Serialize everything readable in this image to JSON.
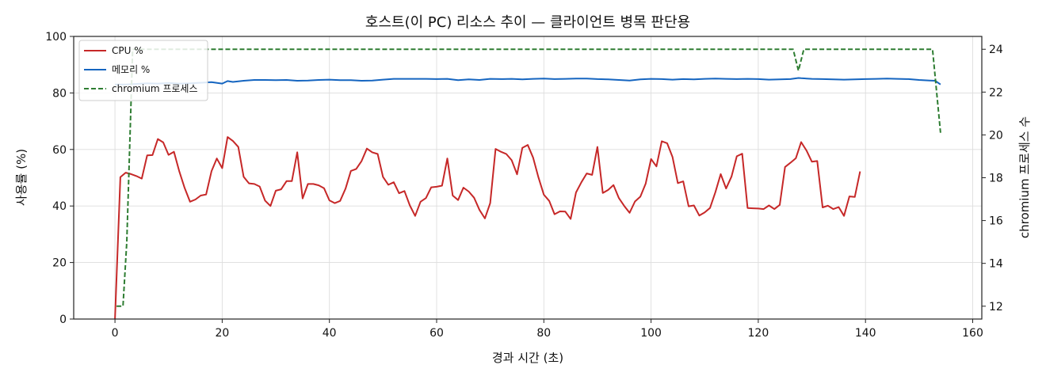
{
  "chart_data": {
    "type": "line",
    "title": "호스트(이 PC) 리소스 추이 — 클라이언트 병목 판단용",
    "xlabel": "경과 시간 (초)",
    "ylabel": "사용률 (%)",
    "ylabel_right": "chromium 프로세스 수",
    "xlim": [
      -7.7,
      161.7
    ],
    "ylim": [
      0,
      100
    ],
    "ylim_right": [
      11.4,
      24.6
    ],
    "x_ticks": [
      0,
      20,
      40,
      60,
      80,
      100,
      120,
      140,
      160
    ],
    "y_ticks": [
      0,
      20,
      40,
      60,
      80,
      100
    ],
    "y_ticks_right": [
      12,
      14,
      16,
      18,
      20,
      22,
      24
    ],
    "grid": true,
    "legend_position": "upper-left",
    "series": [
      {
        "name": "CPU %",
        "axis": "left",
        "color": "#c62828",
        "style": "solid",
        "points": [
          [
            0,
            0
          ],
          [
            1,
            50.2
          ],
          [
            2,
            51.8
          ],
          [
            3,
            51.3
          ],
          [
            4,
            50.6
          ],
          [
            5,
            49.7
          ],
          [
            6,
            57.9
          ],
          [
            7,
            58
          ],
          [
            8,
            63.7
          ],
          [
            9,
            62.5
          ],
          [
            10,
            58.1
          ],
          [
            11,
            59.2
          ],
          [
            12,
            52.2
          ],
          [
            13,
            46.4
          ],
          [
            14,
            41.5
          ],
          [
            15,
            42.3
          ],
          [
            16,
            43.7
          ],
          [
            17,
            44.1
          ],
          [
            18,
            52.3
          ],
          [
            19,
            56.8
          ],
          [
            20,
            53.4
          ],
          [
            21,
            64.4
          ],
          [
            22,
            63
          ],
          [
            23,
            60.9
          ],
          [
            24,
            50.3
          ],
          [
            25,
            48
          ],
          [
            26,
            47.8
          ],
          [
            27,
            46.9
          ],
          [
            28,
            41.9
          ],
          [
            29,
            40
          ],
          [
            30,
            45.4
          ],
          [
            31,
            45.9
          ],
          [
            32,
            48.8
          ],
          [
            33,
            48.8
          ],
          [
            34,
            59
          ],
          [
            35,
            42.7
          ],
          [
            36,
            47.8
          ],
          [
            37,
            47.8
          ],
          [
            38,
            47.3
          ],
          [
            39,
            46.3
          ],
          [
            40,
            42
          ],
          [
            41,
            41
          ],
          [
            42,
            41.8
          ],
          [
            43,
            46.1
          ],
          [
            44,
            52.4
          ],
          [
            45,
            53.1
          ],
          [
            46,
            55.9
          ],
          [
            47,
            60.3
          ],
          [
            48,
            59
          ],
          [
            49,
            58.4
          ],
          [
            50,
            50.3
          ],
          [
            51,
            47.5
          ],
          [
            52,
            48.4
          ],
          [
            53,
            44.5
          ],
          [
            54,
            45.3
          ],
          [
            55,
            40.2
          ],
          [
            56,
            36.5
          ],
          [
            57,
            41.5
          ],
          [
            58,
            42.8
          ],
          [
            59,
            46.6
          ],
          [
            60,
            46.8
          ],
          [
            61,
            47.2
          ],
          [
            62,
            56.8
          ],
          [
            63,
            43.7
          ],
          [
            64,
            42.1
          ],
          [
            65,
            46.5
          ],
          [
            66,
            45.1
          ],
          [
            67,
            42.9
          ],
          [
            68,
            38.6
          ],
          [
            69,
            35.6
          ],
          [
            70,
            41
          ],
          [
            71,
            60.2
          ],
          [
            72,
            59.2
          ],
          [
            73,
            58.4
          ],
          [
            74,
            56.2
          ],
          [
            75,
            51.2
          ],
          [
            76,
            60.6
          ],
          [
            77,
            61.6
          ],
          [
            78,
            57.1
          ],
          [
            79,
            50.1
          ],
          [
            80,
            44
          ],
          [
            81,
            41.8
          ],
          [
            82,
            37.1
          ],
          [
            83,
            38.1
          ],
          [
            84,
            38
          ],
          [
            85,
            35.4
          ],
          [
            86,
            44.8
          ],
          [
            87,
            48.4
          ],
          [
            88,
            51.5
          ],
          [
            89,
            51
          ],
          [
            90,
            60.9
          ],
          [
            91,
            44.6
          ],
          [
            92,
            45.7
          ],
          [
            93,
            47.4
          ],
          [
            94,
            42.8
          ],
          [
            95,
            40
          ],
          [
            96,
            37.6
          ],
          [
            97,
            41.6
          ],
          [
            98,
            43.3
          ],
          [
            99,
            47.9
          ],
          [
            100,
            56.6
          ],
          [
            101,
            54
          ],
          [
            102,
            62.9
          ],
          [
            103,
            62.2
          ],
          [
            104,
            57.3
          ],
          [
            105,
            48.1
          ],
          [
            106,
            48.7
          ],
          [
            107,
            39.9
          ],
          [
            108,
            40.2
          ],
          [
            109,
            36.6
          ],
          [
            110,
            37.7
          ],
          [
            111,
            39.3
          ],
          [
            112,
            44.9
          ],
          [
            113,
            51.3
          ],
          [
            114,
            46.2
          ],
          [
            115,
            50.4
          ],
          [
            116,
            57.6
          ],
          [
            117,
            58.5
          ],
          [
            118,
            39.3
          ],
          [
            119,
            39.2
          ],
          [
            120,
            39.1
          ],
          [
            121,
            38.9
          ],
          [
            122,
            40.2
          ],
          [
            123,
            38.9
          ],
          [
            124,
            40.4
          ],
          [
            125,
            53.8
          ],
          [
            126,
            55.3
          ],
          [
            127,
            56.9
          ],
          [
            128,
            62.6
          ],
          [
            129,
            59.6
          ],
          [
            130,
            55.7
          ],
          [
            131,
            55.9
          ],
          [
            132,
            39.5
          ],
          [
            133,
            40.1
          ],
          [
            134,
            38.9
          ],
          [
            135,
            39.6
          ],
          [
            136,
            36.5
          ],
          [
            137,
            43.4
          ],
          [
            138,
            43.2
          ],
          [
            139,
            52.2
          ]
        ]
      },
      {
        "name": "메모리 %",
        "axis": "left",
        "color": "#1565c0",
        "style": "solid",
        "points": [
          [
            0,
            83
          ],
          [
            2,
            83
          ],
          [
            4,
            83.2
          ],
          [
            6,
            83.4
          ],
          [
            8,
            83.3
          ],
          [
            10,
            83.5
          ],
          [
            12,
            83.3
          ],
          [
            14,
            83.4
          ],
          [
            16,
            83.6
          ],
          [
            18,
            83.8
          ],
          [
            20,
            83.3
          ],
          [
            21,
            84.2
          ],
          [
            22,
            83.9
          ],
          [
            24,
            84.3
          ],
          [
            26,
            84.6
          ],
          [
            28,
            84.6
          ],
          [
            30,
            84.5
          ],
          [
            32,
            84.6
          ],
          [
            34,
            84.3
          ],
          [
            36,
            84.4
          ],
          [
            38,
            84.6
          ],
          [
            40,
            84.7
          ],
          [
            42,
            84.5
          ],
          [
            44,
            84.5
          ],
          [
            46,
            84.3
          ],
          [
            48,
            84.4
          ],
          [
            50,
            84.7
          ],
          [
            52,
            85
          ],
          [
            54,
            85
          ],
          [
            56,
            85
          ],
          [
            58,
            85
          ],
          [
            60,
            84.9
          ],
          [
            62,
            85
          ],
          [
            64,
            84.5
          ],
          [
            66,
            84.8
          ],
          [
            68,
            84.6
          ],
          [
            70,
            85
          ],
          [
            72,
            84.9
          ],
          [
            74,
            85
          ],
          [
            76,
            84.8
          ],
          [
            78,
            85
          ],
          [
            80,
            85.1
          ],
          [
            82,
            84.9
          ],
          [
            84,
            85
          ],
          [
            86,
            85.1
          ],
          [
            88,
            85.1
          ],
          [
            90,
            84.9
          ],
          [
            92,
            84.8
          ],
          [
            94,
            84.6
          ],
          [
            96,
            84.4
          ],
          [
            98,
            84.8
          ],
          [
            100,
            85
          ],
          [
            102,
            84.9
          ],
          [
            104,
            84.7
          ],
          [
            106,
            84.9
          ],
          [
            108,
            84.8
          ],
          [
            110,
            85
          ],
          [
            112,
            85.1
          ],
          [
            114,
            85
          ],
          [
            116,
            84.9
          ],
          [
            118,
            85
          ],
          [
            120,
            84.9
          ],
          [
            122,
            84.7
          ],
          [
            124,
            84.8
          ],
          [
            126,
            84.9
          ],
          [
            127.5,
            85.3
          ],
          [
            128,
            85.2
          ],
          [
            130,
            85
          ],
          [
            132,
            84.9
          ],
          [
            134,
            84.8
          ],
          [
            136,
            84.7
          ],
          [
            138,
            84.8
          ],
          [
            140,
            84.9
          ],
          [
            142,
            85
          ],
          [
            144,
            85.1
          ],
          [
            146,
            85
          ],
          [
            148,
            84.9
          ],
          [
            150,
            84.6
          ],
          [
            152,
            84.4
          ],
          [
            153,
            84.3
          ],
          [
            154,
            83
          ]
        ]
      },
      {
        "name": "chromium 프로세스",
        "axis": "right",
        "color": "#2e7d32",
        "style": "dashed",
        "points": [
          [
            0.3,
            12
          ],
          [
            1.5,
            12
          ],
          [
            2.2,
            15
          ],
          [
            3.3,
            24
          ],
          [
            126.5,
            24
          ],
          [
            127.5,
            23
          ],
          [
            128.5,
            24
          ],
          [
            152.5,
            24
          ],
          [
            154,
            20.1
          ]
        ]
      }
    ]
  }
}
